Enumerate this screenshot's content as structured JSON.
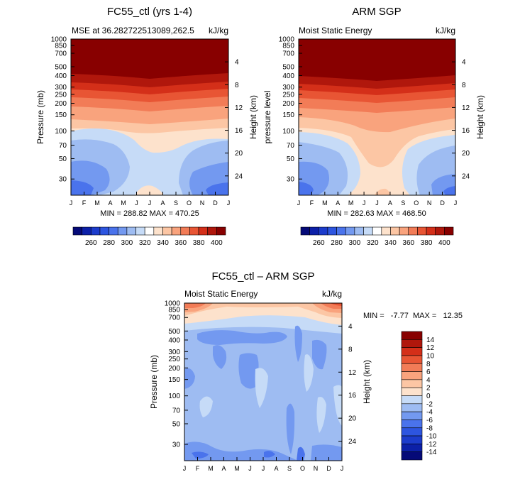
{
  "chart_data": [
    {
      "type": "heatmap",
      "title": "FC55_ctl (yrs 1-4)",
      "subtitle_left": "MSE at 36.282722513089,262.5",
      "subtitle_right": "kJ/kg",
      "ylabel": "Pressure (mb)",
      "y2label": "Height (km)",
      "x_ticks": [
        "J",
        "F",
        "M",
        "A",
        "M",
        "J",
        "J",
        "A",
        "S",
        "O",
        "N",
        "D",
        "J"
      ],
      "y_ticks": [
        "30",
        "50",
        "70",
        "100",
        "150",
        "200",
        "250",
        "300",
        "400",
        "500",
        "700",
        "850",
        "1000"
      ],
      "y2_ticks": [
        "24",
        "20",
        "16",
        "12",
        "8",
        "4"
      ],
      "stats": "MIN = 288.82  MAX = 470.25",
      "min": 288.82,
      "max": 470.25,
      "ylim": [
        1000,
        20
      ]
    },
    {
      "type": "heatmap",
      "title": "ARM SGP",
      "subtitle_left": "Moist Static Energy",
      "subtitle_right": "kJ/kg",
      "ylabel": "pressure level",
      "y2label": "Height (km)",
      "x_ticks": [
        "J",
        "F",
        "M",
        "A",
        "M",
        "J",
        "J",
        "A",
        "S",
        "O",
        "N",
        "D",
        "J"
      ],
      "y_ticks": [
        "30",
        "50",
        "70",
        "100",
        "150",
        "200",
        "250",
        "300",
        "400",
        "500",
        "700",
        "850",
        "1000"
      ],
      "y2_ticks": [
        "24",
        "20",
        "16",
        "12",
        "8",
        "4"
      ],
      "stats": "MIN = 282.63  MAX = 468.50",
      "min": 282.63,
      "max": 468.5,
      "ylim": [
        1000,
        20
      ]
    },
    {
      "type": "heatmap",
      "title": "FC55_ctl – ARM SGP",
      "subtitle_left": "Moist Static Energy",
      "subtitle_right": "kJ/kg",
      "ylabel": "Pressure (mb)",
      "y2label": "Height (km)",
      "x_ticks": [
        "J",
        "F",
        "M",
        "A",
        "M",
        "J",
        "J",
        "A",
        "S",
        "O",
        "N",
        "D",
        "J"
      ],
      "y_ticks": [
        "30",
        "50",
        "70",
        "100",
        "150",
        "200",
        "250",
        "300",
        "400",
        "500",
        "700",
        "850",
        "1000"
      ],
      "y2_ticks": [
        "24",
        "20",
        "16",
        "12",
        "8",
        "4"
      ],
      "stats": "MIN =   -7.77  MAX =   12.35",
      "min": -7.77,
      "max": 12.35,
      "ylim": [
        1000,
        20
      ]
    }
  ],
  "colorbar_top": {
    "levels": [
      "260",
      "280",
      "300",
      "320",
      "340",
      "360",
      "380",
      "400"
    ],
    "colors": [
      "#050a78",
      "#0c20a8",
      "#1c3ccc",
      "#2d55e0",
      "#4a73ec",
      "#7399f0",
      "#9ebcf2",
      "#c6dbf7",
      "#ffffff",
      "#fde2cc",
      "#fcc6a4",
      "#f9a37d",
      "#f27c57",
      "#e85534",
      "#d42f19",
      "#b0170c",
      "#880000"
    ]
  },
  "colorbar_diff": {
    "levels": [
      "14",
      "12",
      "10",
      "8",
      "6",
      "4",
      "2",
      "0",
      "-2",
      "-4",
      "-6",
      "-8",
      "-10",
      "-12",
      "-14"
    ],
    "colors": [
      "#880000",
      "#b0170c",
      "#d42f19",
      "#e85534",
      "#f27c57",
      "#f9a37d",
      "#fcc6a4",
      "#fde2cc",
      "#c6dbf7",
      "#9ebcf2",
      "#7399f0",
      "#4a73ec",
      "#2d55e0",
      "#1c3ccc",
      "#0c20a8",
      "#050a78"
    ]
  }
}
